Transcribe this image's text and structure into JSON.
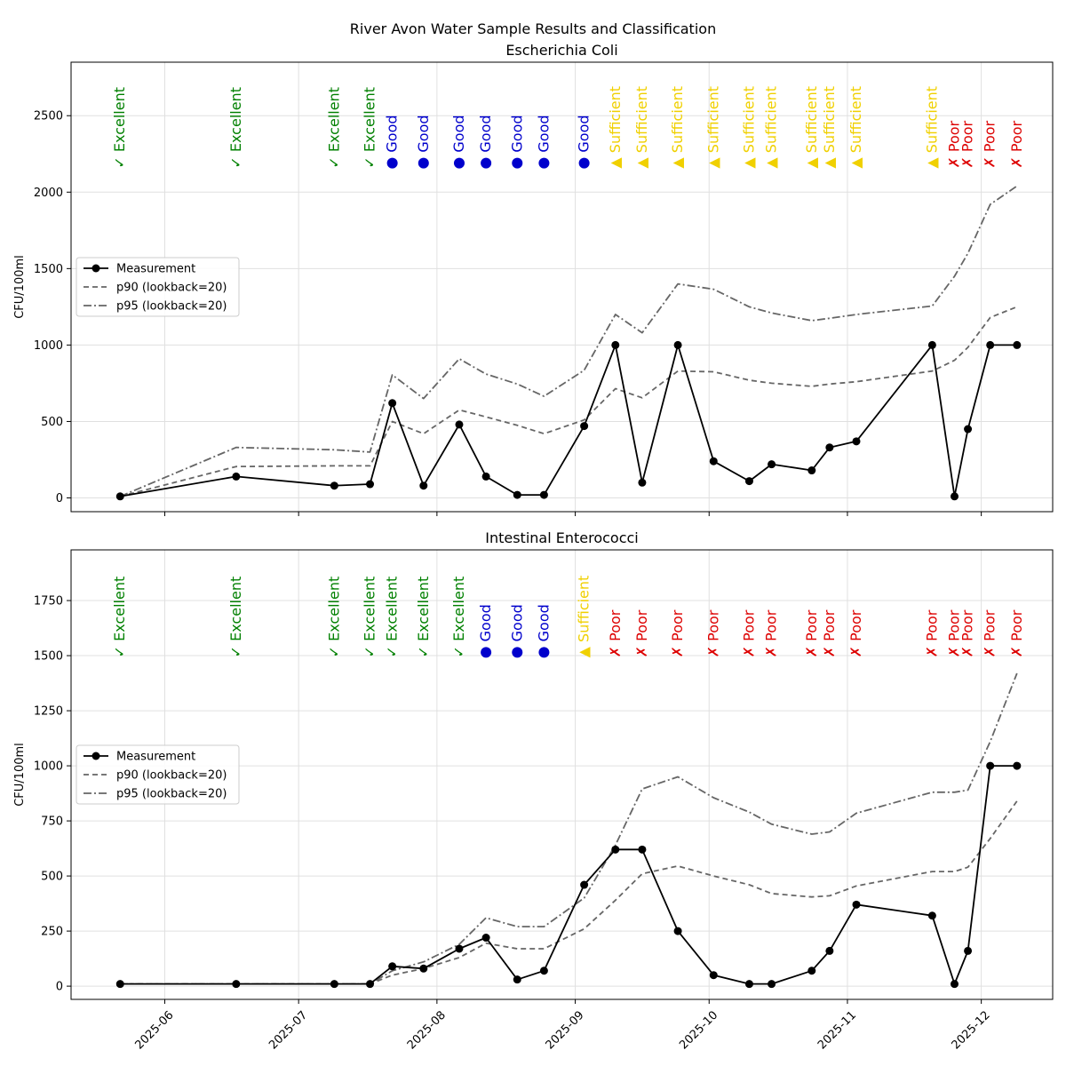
{
  "figure": {
    "suptitle": "River Avon Water Sample Results and Classification"
  },
  "colors": {
    "Excellent": "#008000",
    "Good": "#0000cc",
    "Sufficient": "#f0d000",
    "Poor": "#dd0000",
    "measurement": "#000000",
    "percentile": "#666666",
    "grid": "#e0e0e0"
  },
  "symbols": {
    "Excellent": "✓",
    "Good": "●",
    "Sufficient": "▲",
    "Poor": "✗"
  },
  "chart_data": [
    {
      "type": "line",
      "title": "Escherichia Coli",
      "ylabel": "CFU/100ml",
      "ylim": [
        -90,
        2850
      ],
      "yticks": [
        0,
        500,
        1000,
        1500,
        2000,
        2500
      ],
      "xlim": [
        "2025-05-11",
        "2025-12-17"
      ],
      "xticks": [
        "2025-06-01",
        "2025-07-01",
        "2025-08-01",
        "2025-09-01",
        "2025-10-01",
        "2025-11-01",
        "2025-12-01"
      ],
      "xticklabels": [
        "2025-06",
        "2025-07",
        "2025-08",
        "2025-09",
        "2025-10",
        "2025-11",
        "2025-12"
      ],
      "show_xticklabels": false,
      "grid": true,
      "legend_position": "center-left",
      "x": [
        "2025-05-22",
        "2025-06-17",
        "2025-07-09",
        "2025-07-17",
        "2025-07-22",
        "2025-07-29",
        "2025-08-06",
        "2025-08-12",
        "2025-08-19",
        "2025-08-25",
        "2025-09-03",
        "2025-09-10",
        "2025-09-16",
        "2025-09-24",
        "2025-10-02",
        "2025-10-10",
        "2025-10-15",
        "2025-10-24",
        "2025-10-28",
        "2025-11-03",
        "2025-11-20",
        "2025-11-25",
        "2025-11-28",
        "2025-12-03",
        "2025-12-09"
      ],
      "series": [
        {
          "name": "Measurement",
          "style": "solid-marker",
          "values": [
            10,
            140,
            80,
            90,
            620,
            80,
            480,
            140,
            20,
            20,
            470,
            1000,
            100,
            1000,
            240,
            110,
            220,
            180,
            330,
            370,
            1000,
            10,
            450,
            1000,
            1000
          ]
        },
        {
          "name": "p90 (lookback=20)",
          "style": "dashed",
          "values": [
            10,
            205,
            210,
            210,
            500,
            420,
            575,
            530,
            475,
            420,
            510,
            715,
            655,
            830,
            825,
            770,
            750,
            730,
            745,
            760,
            830,
            900,
            985,
            1180,
            1250
          ]
        },
        {
          "name": "p95 (lookback=20)",
          "style": "dashdot",
          "values": [
            10,
            330,
            315,
            300,
            805,
            650,
            910,
            810,
            745,
            665,
            835,
            1200,
            1080,
            1400,
            1365,
            1250,
            1210,
            1160,
            1175,
            1200,
            1255,
            1450,
            1600,
            1920,
            2040
          ]
        }
      ],
      "classification_y": 2190,
      "classifications": [
        "Excellent",
        "Excellent",
        "Excellent",
        "Excellent",
        "Good",
        "Good",
        "Good",
        "Good",
        "Good",
        "Good",
        "Good",
        "Sufficient",
        "Sufficient",
        "Sufficient",
        "Sufficient",
        "Sufficient",
        "Sufficient",
        "Sufficient",
        "Sufficient",
        "Sufficient",
        "Sufficient",
        "Poor",
        "Poor",
        "Poor",
        "Poor"
      ]
    },
    {
      "type": "line",
      "title": "Intestinal Enterococci",
      "ylabel": "CFU/100ml",
      "ylim": [
        -60,
        1980
      ],
      "yticks": [
        0,
        250,
        500,
        750,
        1000,
        1250,
        1500,
        1750
      ],
      "xlim": [
        "2025-05-11",
        "2025-12-17"
      ],
      "xticks": [
        "2025-06-01",
        "2025-07-01",
        "2025-08-01",
        "2025-09-01",
        "2025-10-01",
        "2025-11-01",
        "2025-12-01"
      ],
      "xticklabels": [
        "2025-06",
        "2025-07",
        "2025-08",
        "2025-09",
        "2025-10",
        "2025-11",
        "2025-12"
      ],
      "show_xticklabels": true,
      "grid": true,
      "legend_position": "center-left",
      "x": [
        "2025-05-22",
        "2025-06-17",
        "2025-07-09",
        "2025-07-17",
        "2025-07-22",
        "2025-07-29",
        "2025-08-06",
        "2025-08-12",
        "2025-08-19",
        "2025-08-25",
        "2025-09-03",
        "2025-09-10",
        "2025-09-16",
        "2025-09-24",
        "2025-10-02",
        "2025-10-10",
        "2025-10-15",
        "2025-10-24",
        "2025-10-28",
        "2025-11-03",
        "2025-11-20",
        "2025-11-25",
        "2025-11-28",
        "2025-12-03",
        "2025-12-09"
      ],
      "series": [
        {
          "name": "Measurement",
          "style": "solid-marker",
          "values": [
            10,
            10,
            10,
            10,
            90,
            80,
            170,
            220,
            30,
            70,
            460,
            620,
            620,
            250,
            50,
            10,
            10,
            70,
            160,
            370,
            320,
            10,
            160,
            1000,
            1000
          ]
        },
        {
          "name": "p90 (lookback=20)",
          "style": "dashed",
          "values": [
            10,
            10,
            10,
            10,
            50,
            80,
            130,
            195,
            170,
            170,
            260,
            390,
            510,
            545,
            500,
            460,
            420,
            405,
            410,
            455,
            520,
            520,
            540,
            670,
            840
          ]
        },
        {
          "name": "p95 (lookback=20)",
          "style": "dashdot",
          "values": [
            10,
            10,
            10,
            10,
            70,
            110,
            190,
            310,
            270,
            270,
            400,
            640,
            895,
            950,
            855,
            790,
            735,
            690,
            700,
            785,
            880,
            880,
            890,
            1110,
            1420
          ]
        }
      ],
      "classification_y": 1515,
      "classifications": [
        "Excellent",
        "Excellent",
        "Excellent",
        "Excellent",
        "Excellent",
        "Excellent",
        "Excellent",
        "Good",
        "Good",
        "Good",
        "Sufficient",
        "Poor",
        "Poor",
        "Poor",
        "Poor",
        "Poor",
        "Poor",
        "Poor",
        "Poor",
        "Poor",
        "Poor",
        "Poor",
        "Poor",
        "Poor",
        "Poor"
      ]
    }
  ]
}
